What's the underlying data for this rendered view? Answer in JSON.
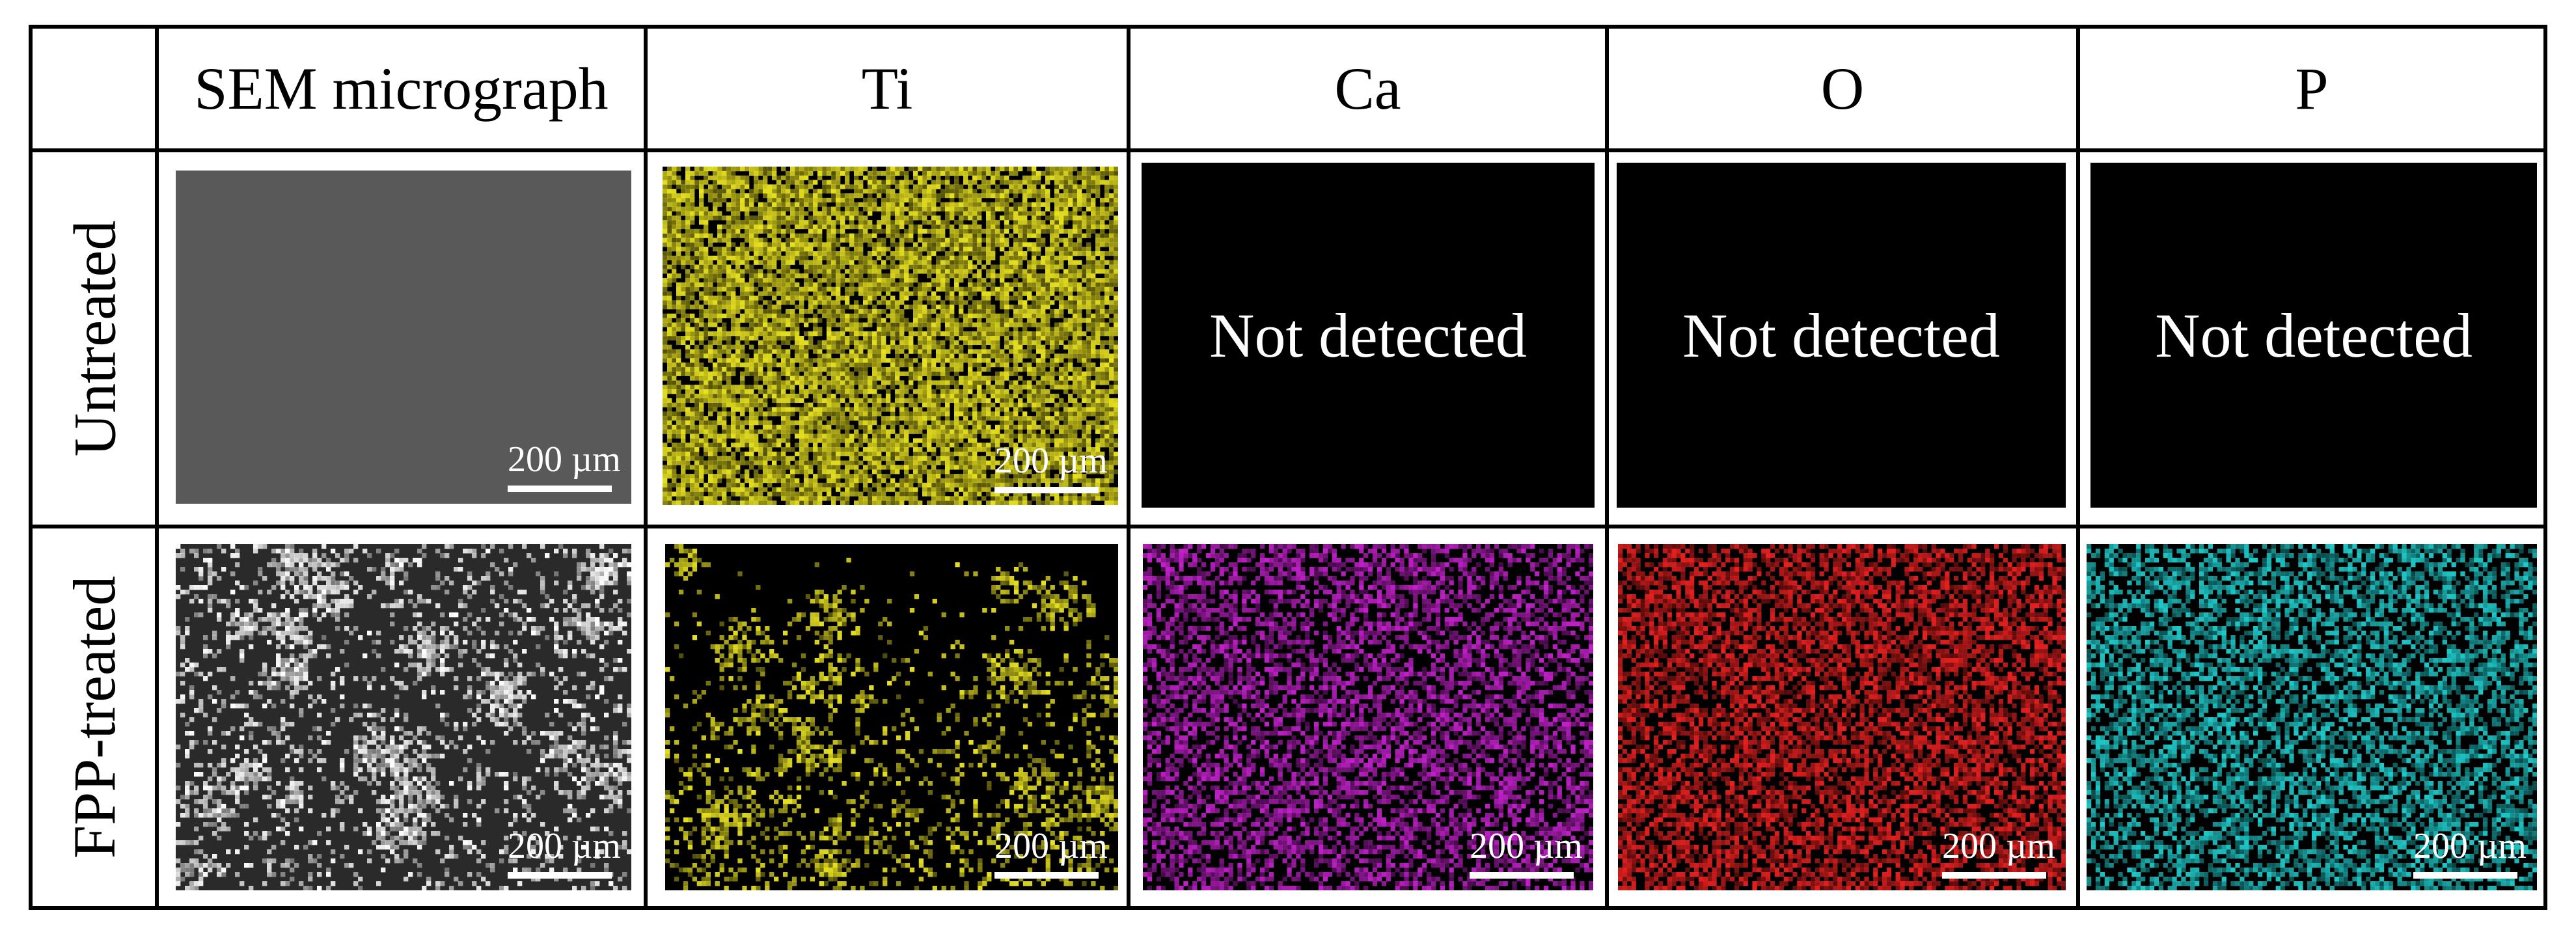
{
  "headers": {
    "corner": "",
    "columns": [
      "SEM micrograph",
      "Ti",
      "Ca",
      "O",
      "P"
    ]
  },
  "rows": [
    "Untreated",
    "FPP-treated"
  ],
  "scale_bar_label": "200 µm",
  "not_detected_label": "Not detected",
  "colors": {
    "untreated_sem": "#595959",
    "Ti": "#e6e020",
    "Ca": "#c020c8",
    "O": "#e62020",
    "P": "#20c8c8",
    "sem_bright": "#ffffff",
    "background_map": "#000000"
  },
  "cells": {
    "untreated": [
      {
        "type": "flat",
        "color_key": "untreated_sem",
        "scale_bar": true
      },
      {
        "type": "map",
        "color_key": "Ti",
        "density": "high-uniform",
        "scale_bar": true
      },
      {
        "type": "not-detected"
      },
      {
        "type": "not-detected"
      },
      {
        "type": "not-detected"
      }
    ],
    "fpp_treated": [
      {
        "type": "sem",
        "scale_bar": true
      },
      {
        "type": "map",
        "color_key": "Ti",
        "density": "sparse",
        "scale_bar": true
      },
      {
        "type": "map",
        "color_key": "Ca",
        "density": "medium",
        "scale_bar": true
      },
      {
        "type": "map",
        "color_key": "O",
        "density": "medium-high",
        "scale_bar": true
      },
      {
        "type": "map",
        "color_key": "P",
        "density": "medium",
        "scale_bar": true
      }
    ]
  }
}
